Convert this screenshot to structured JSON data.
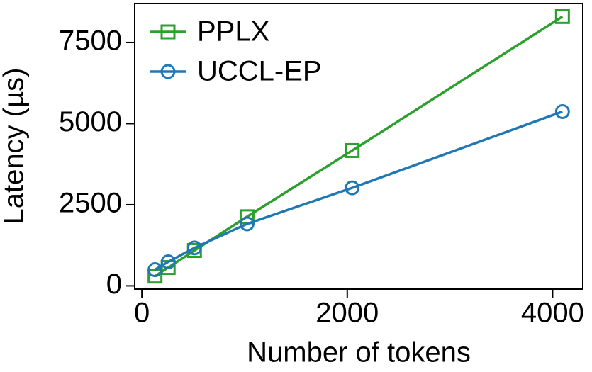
{
  "chart_data": {
    "type": "line",
    "x_label": "Number of tokens",
    "y_label": "Latency (µs)",
    "x": [
      128,
      256,
      512,
      1024,
      2048,
      4096
    ],
    "series": [
      {
        "name": "PPLX",
        "color": "#2ca02c",
        "marker": "square",
        "values": [
          300,
          565,
          1090,
          2130,
          4170,
          8300
        ]
      },
      {
        "name": "UCCL-EP",
        "color": "#1f77b4",
        "marker": "circle",
        "values": [
          500,
          740,
          1170,
          1910,
          3020,
          5370
        ]
      }
    ],
    "xlim": [
      -70,
      4294
    ],
    "xticks": [
      0,
      2000,
      4000
    ],
    "ylim": [
      -100,
      8700
    ],
    "yticks": [
      0,
      2500,
      5000,
      7500
    ],
    "legend": "upper left",
    "grid": false
  }
}
